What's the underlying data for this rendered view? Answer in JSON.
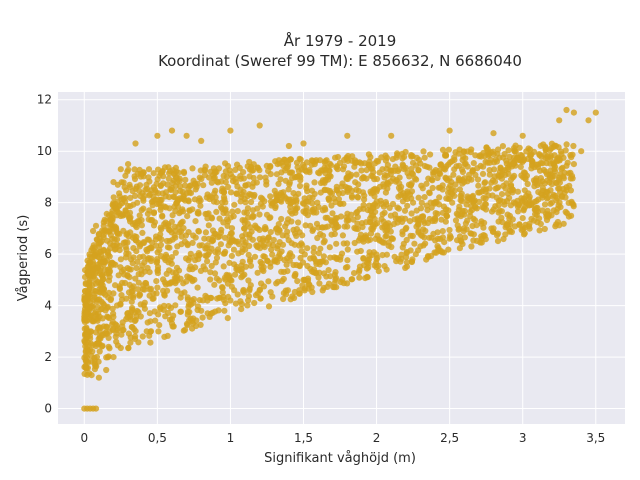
{
  "chart_data": {
    "type": "scatter",
    "title_lines": [
      "År 1979 - 2019",
      "Koordinat (Sweref 99 TM): E 856632, N 6686040"
    ],
    "xlabel": "Signifikant våghöjd (m)",
    "ylabel": "Vågperiod (s)",
    "xlim": [
      -0.18,
      3.7
    ],
    "ylim": [
      -0.6,
      12.3
    ],
    "xticks": [
      0,
      0.5,
      1,
      1.5,
      2,
      2.5,
      3,
      3.5
    ],
    "xtick_labels": [
      "0",
      "0,5",
      "1",
      "1,5",
      "2",
      "2,5",
      "3",
      "3,5"
    ],
    "yticks": [
      0,
      2,
      4,
      6,
      8,
      10,
      12
    ],
    "ytick_labels": [
      "0",
      "2",
      "4",
      "6",
      "8",
      "10",
      "12"
    ],
    "grid": true,
    "marker_color": "#D4A21E",
    "plot_background": "#E9E9F1",
    "series": [
      {
        "points": [
          [
            0.0,
            0.0
          ],
          [
            0.02,
            0.0
          ],
          [
            0.04,
            0.0
          ],
          [
            0.06,
            0.0
          ],
          [
            0.08,
            0.0
          ],
          [
            0.01,
            1.6
          ],
          [
            0.01,
            2.2
          ],
          [
            0.02,
            3.0
          ],
          [
            0.03,
            4.5
          ],
          [
            0.04,
            5.9
          ],
          [
            0.05,
            1.3
          ],
          [
            0.06,
            6.9
          ],
          [
            0.08,
            7.1
          ],
          [
            0.1,
            1.2
          ],
          [
            0.15,
            1.5
          ],
          [
            0.2,
            8.8
          ],
          [
            0.25,
            9.3
          ],
          [
            0.3,
            9.5
          ],
          [
            0.35,
            10.3
          ],
          [
            0.5,
            10.6
          ],
          [
            0.6,
            10.8
          ],
          [
            0.7,
            10.6
          ],
          [
            0.8,
            10.4
          ],
          [
            1.0,
            10.8
          ],
          [
            1.2,
            11.0
          ],
          [
            1.4,
            10.2
          ],
          [
            1.5,
            10.3
          ],
          [
            1.8,
            10.6
          ],
          [
            2.1,
            10.6
          ],
          [
            2.5,
            10.8
          ],
          [
            2.8,
            10.7
          ],
          [
            3.0,
            10.6
          ],
          [
            3.25,
            11.2
          ],
          [
            3.3,
            11.6
          ],
          [
            3.35,
            11.5
          ],
          [
            3.45,
            11.2
          ],
          [
            3.5,
            11.5
          ],
          [
            0.2,
            2.0
          ],
          [
            0.4,
            2.8
          ],
          [
            0.6,
            3.3
          ],
          [
            0.8,
            3.8
          ],
          [
            1.0,
            4.2
          ],
          [
            1.2,
            4.6
          ],
          [
            1.5,
            5.0
          ],
          [
            1.8,
            5.5
          ],
          [
            2.0,
            5.8
          ],
          [
            2.3,
            6.3
          ],
          [
            2.5,
            6.6
          ],
          [
            2.8,
            7.0
          ],
          [
            3.0,
            7.4
          ],
          [
            3.2,
            8.0
          ],
          [
            3.3,
            8.6
          ],
          [
            3.35,
            9.5
          ],
          [
            3.4,
            10.0
          ]
        ]
      }
    ]
  }
}
